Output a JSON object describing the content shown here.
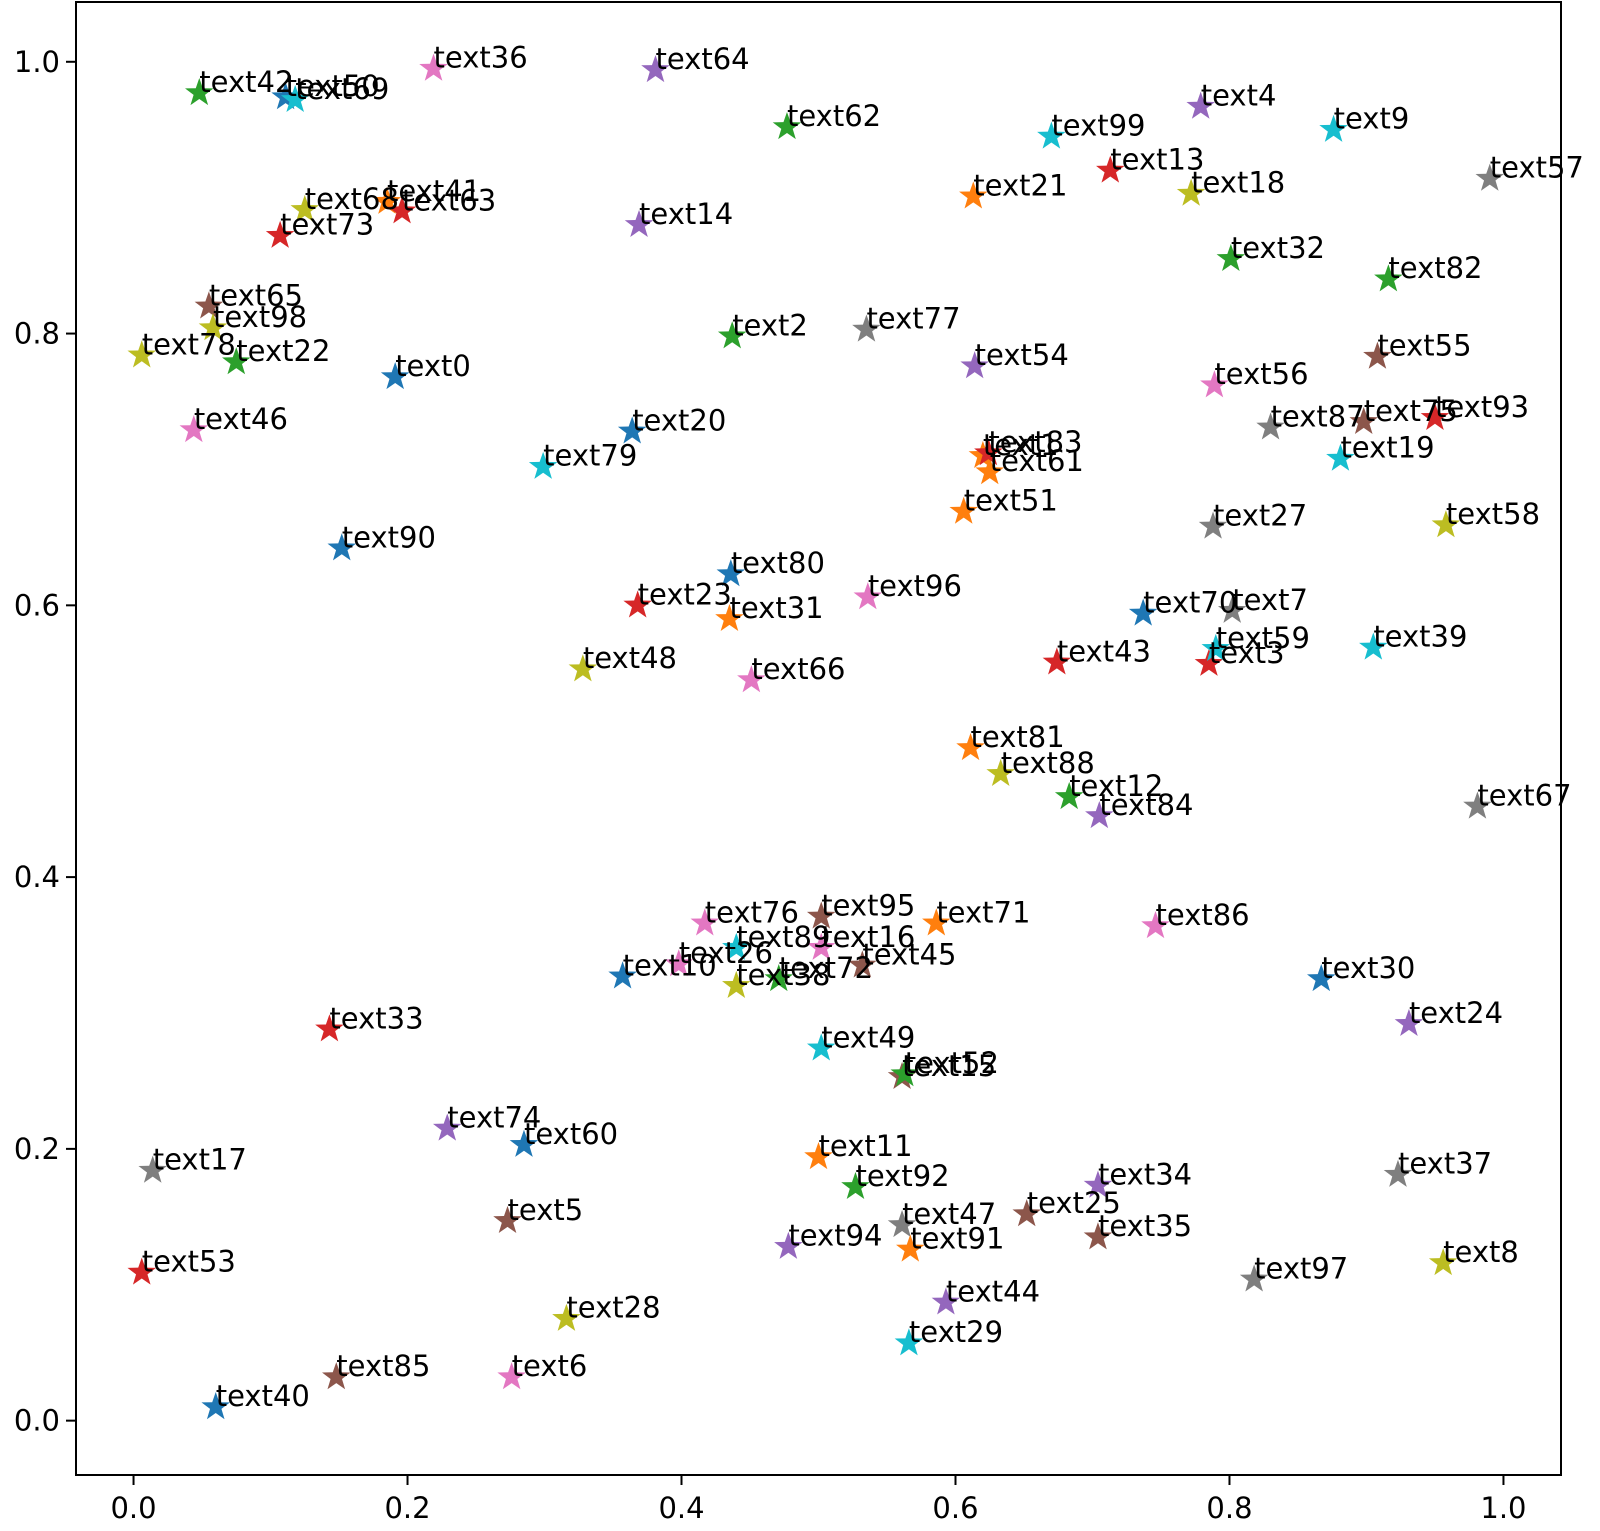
{
  "chart_data": {
    "type": "scatter",
    "title": "",
    "xlabel": "",
    "ylabel": "",
    "xlim": [
      -0.042,
      1.042
    ],
    "ylim": [
      -0.04,
      1.044
    ],
    "grid": false,
    "marker": "star",
    "x_ticks": [
      {
        "value": 0.0,
        "label": "0.0"
      },
      {
        "value": 0.2,
        "label": "0.2"
      },
      {
        "value": 0.4,
        "label": "0.4"
      },
      {
        "value": 0.6,
        "label": "0.6"
      },
      {
        "value": 0.8,
        "label": "0.8"
      },
      {
        "value": 1.0,
        "label": "1.0"
      }
    ],
    "y_ticks": [
      {
        "value": 0.0,
        "label": "0.0"
      },
      {
        "value": 0.2,
        "label": "0.2"
      },
      {
        "value": 0.4,
        "label": "0.4"
      },
      {
        "value": 0.6,
        "label": "0.6"
      },
      {
        "value": 0.8,
        "label": "0.8"
      },
      {
        "value": 1.0,
        "label": "1.0"
      }
    ],
    "points": [
      {
        "label": "text0",
        "x": 0.191,
        "y": 0.768,
        "color": "#1f77b4"
      },
      {
        "label": "text1",
        "x": 0.62,
        "y": 0.71,
        "color": "#ff7f0e"
      },
      {
        "label": "text2",
        "x": 0.437,
        "y": 0.798,
        "color": "#2ca02c"
      },
      {
        "label": "text3",
        "x": 0.785,
        "y": 0.557,
        "color": "#d62728"
      },
      {
        "label": "text4",
        "x": 0.779,
        "y": 0.967,
        "color": "#9467bd"
      },
      {
        "label": "text5",
        "x": 0.273,
        "y": 0.147,
        "color": "#8c564b"
      },
      {
        "label": "text6",
        "x": 0.276,
        "y": 0.032,
        "color": "#e377c2"
      },
      {
        "label": "text7",
        "x": 0.802,
        "y": 0.596,
        "color": "#7f7f7f"
      },
      {
        "label": "text8",
        "x": 0.956,
        "y": 0.116,
        "color": "#bcbd22"
      },
      {
        "label": "text9",
        "x": 0.876,
        "y": 0.95,
        "color": "#17becf"
      },
      {
        "label": "text10",
        "x": 0.357,
        "y": 0.327,
        "color": "#1f77b4"
      },
      {
        "label": "text11",
        "x": 0.5,
        "y": 0.194,
        "color": "#ff7f0e"
      },
      {
        "label": "text12",
        "x": 0.683,
        "y": 0.459,
        "color": "#2ca02c"
      },
      {
        "label": "text13",
        "x": 0.713,
        "y": 0.92,
        "color": "#d62728"
      },
      {
        "label": "text14",
        "x": 0.369,
        "y": 0.88,
        "color": "#9467bd"
      },
      {
        "label": "text15",
        "x": 0.561,
        "y": 0.253,
        "color": "#8c564b"
      },
      {
        "label": "text16",
        "x": 0.502,
        "y": 0.348,
        "color": "#e377c2"
      },
      {
        "label": "text17",
        "x": 0.014,
        "y": 0.184,
        "color": "#7f7f7f"
      },
      {
        "label": "text18",
        "x": 0.772,
        "y": 0.903,
        "color": "#bcbd22"
      },
      {
        "label": "text19",
        "x": 0.881,
        "y": 0.708,
        "color": "#17becf"
      },
      {
        "label": "text20",
        "x": 0.364,
        "y": 0.728,
        "color": "#1f77b4"
      },
      {
        "label": "text21",
        "x": 0.613,
        "y": 0.901,
        "color": "#ff7f0e"
      },
      {
        "label": "text22",
        "x": 0.075,
        "y": 0.779,
        "color": "#2ca02c"
      },
      {
        "label": "text23",
        "x": 0.368,
        "y": 0.6,
        "color": "#d62728"
      },
      {
        "label": "text24",
        "x": 0.931,
        "y": 0.292,
        "color": "#9467bd"
      },
      {
        "label": "text25",
        "x": 0.652,
        "y": 0.152,
        "color": "#8c564b"
      },
      {
        "label": "text26",
        "x": 0.398,
        "y": 0.336,
        "color": "#e377c2"
      },
      {
        "label": "text27",
        "x": 0.788,
        "y": 0.658,
        "color": "#7f7f7f"
      },
      {
        "label": "text28",
        "x": 0.316,
        "y": 0.075,
        "color": "#bcbd22"
      },
      {
        "label": "text29",
        "x": 0.566,
        "y": 0.057,
        "color": "#17becf"
      },
      {
        "label": "text30",
        "x": 0.867,
        "y": 0.325,
        "color": "#1f77b4"
      },
      {
        "label": "text31",
        "x": 0.435,
        "y": 0.59,
        "color": "#ff7f0e"
      },
      {
        "label": "text32",
        "x": 0.801,
        "y": 0.855,
        "color": "#2ca02c"
      },
      {
        "label": "text33",
        "x": 0.143,
        "y": 0.288,
        "color": "#d62728"
      },
      {
        "label": "text34",
        "x": 0.704,
        "y": 0.173,
        "color": "#9467bd"
      },
      {
        "label": "text35",
        "x": 0.704,
        "y": 0.135,
        "color": "#8c564b"
      },
      {
        "label": "text36",
        "x": 0.219,
        "y": 0.995,
        "color": "#e377c2"
      },
      {
        "label": "text37",
        "x": 0.923,
        "y": 0.181,
        "color": "#7f7f7f"
      },
      {
        "label": "text38",
        "x": 0.44,
        "y": 0.32,
        "color": "#bcbd22"
      },
      {
        "label": "text39",
        "x": 0.905,
        "y": 0.569,
        "color": "#17becf"
      },
      {
        "label": "text40",
        "x": 0.06,
        "y": 0.01,
        "color": "#1f77b4"
      },
      {
        "label": "text41",
        "x": 0.185,
        "y": 0.897,
        "color": "#ff7f0e"
      },
      {
        "label": "text42",
        "x": 0.048,
        "y": 0.977,
        "color": "#2ca02c"
      },
      {
        "label": "text43",
        "x": 0.674,
        "y": 0.558,
        "color": "#d62728"
      },
      {
        "label": "text44",
        "x": 0.593,
        "y": 0.087,
        "color": "#9467bd"
      },
      {
        "label": "text45",
        "x": 0.532,
        "y": 0.335,
        "color": "#8c564b"
      },
      {
        "label": "text46",
        "x": 0.044,
        "y": 0.729,
        "color": "#e377c2"
      },
      {
        "label": "text47",
        "x": 0.561,
        "y": 0.144,
        "color": "#7f7f7f"
      },
      {
        "label": "text48",
        "x": 0.328,
        "y": 0.553,
        "color": "#bcbd22"
      },
      {
        "label": "text49",
        "x": 0.502,
        "y": 0.274,
        "color": "#17becf"
      },
      {
        "label": "text50",
        "x": 0.111,
        "y": 0.974,
        "color": "#1f77b4"
      },
      {
        "label": "text51",
        "x": 0.606,
        "y": 0.669,
        "color": "#ff7f0e"
      },
      {
        "label": "text52",
        "x": 0.563,
        "y": 0.255,
        "color": "#2ca02c"
      },
      {
        "label": "text53",
        "x": 0.006,
        "y": 0.109,
        "color": "#d62728"
      },
      {
        "label": "text54",
        "x": 0.614,
        "y": 0.776,
        "color": "#9467bd"
      },
      {
        "label": "text55",
        "x": 0.908,
        "y": 0.783,
        "color": "#8c564b"
      },
      {
        "label": "text56",
        "x": 0.789,
        "y": 0.762,
        "color": "#e377c2"
      },
      {
        "label": "text57",
        "x": 0.99,
        "y": 0.914,
        "color": "#7f7f7f"
      },
      {
        "label": "text58",
        "x": 0.958,
        "y": 0.659,
        "color": "#bcbd22"
      },
      {
        "label": "text59",
        "x": 0.79,
        "y": 0.568,
        "color": "#17becf"
      },
      {
        "label": "text60",
        "x": 0.285,
        "y": 0.203,
        "color": "#1f77b4"
      },
      {
        "label": "text61",
        "x": 0.625,
        "y": 0.698,
        "color": "#ff7f0e"
      },
      {
        "label": "text62",
        "x": 0.477,
        "y": 0.952,
        "color": "#2ca02c"
      },
      {
        "label": "text63",
        "x": 0.196,
        "y": 0.89,
        "color": "#d62728"
      },
      {
        "label": "text64",
        "x": 0.381,
        "y": 0.994,
        "color": "#9467bd"
      },
      {
        "label": "text65",
        "x": 0.055,
        "y": 0.82,
        "color": "#8c564b"
      },
      {
        "label": "text66",
        "x": 0.451,
        "y": 0.545,
        "color": "#e377c2"
      },
      {
        "label": "text67",
        "x": 0.981,
        "y": 0.452,
        "color": "#7f7f7f"
      },
      {
        "label": "text68",
        "x": 0.125,
        "y": 0.891,
        "color": "#bcbd22"
      },
      {
        "label": "text69",
        "x": 0.118,
        "y": 0.972,
        "color": "#17becf"
      },
      {
        "label": "text70",
        "x": 0.737,
        "y": 0.594,
        "color": "#1f77b4"
      },
      {
        "label": "text71",
        "x": 0.586,
        "y": 0.366,
        "color": "#ff7f0e"
      },
      {
        "label": "text72",
        "x": 0.471,
        "y": 0.325,
        "color": "#2ca02c"
      },
      {
        "label": "text73",
        "x": 0.107,
        "y": 0.872,
        "color": "#d62728"
      },
      {
        "label": "text74",
        "x": 0.229,
        "y": 0.215,
        "color": "#9467bd"
      },
      {
        "label": "text75",
        "x": 0.898,
        "y": 0.735,
        "color": "#8c564b"
      },
      {
        "label": "text76",
        "x": 0.417,
        "y": 0.366,
        "color": "#e377c2"
      },
      {
        "label": "text77",
        "x": 0.535,
        "y": 0.803,
        "color": "#7f7f7f"
      },
      {
        "label": "text78",
        "x": 0.006,
        "y": 0.784,
        "color": "#bcbd22"
      },
      {
        "label": "text79",
        "x": 0.299,
        "y": 0.702,
        "color": "#17becf"
      },
      {
        "label": "text80",
        "x": 0.436,
        "y": 0.623,
        "color": "#1f77b4"
      },
      {
        "label": "text81",
        "x": 0.611,
        "y": 0.495,
        "color": "#ff7f0e"
      },
      {
        "label": "text82",
        "x": 0.916,
        "y": 0.84,
        "color": "#2ca02c"
      },
      {
        "label": "text83",
        "x": 0.624,
        "y": 0.712,
        "color": "#d62728"
      },
      {
        "label": "text84",
        "x": 0.705,
        "y": 0.445,
        "color": "#9467bd"
      },
      {
        "label": "text85",
        "x": 0.148,
        "y": 0.032,
        "color": "#8c564b"
      },
      {
        "label": "text86",
        "x": 0.746,
        "y": 0.364,
        "color": "#e377c2"
      },
      {
        "label": "text87",
        "x": 0.83,
        "y": 0.731,
        "color": "#7f7f7f"
      },
      {
        "label": "text88",
        "x": 0.633,
        "y": 0.476,
        "color": "#bcbd22"
      },
      {
        "label": "text89",
        "x": 0.44,
        "y": 0.348,
        "color": "#17becf"
      },
      {
        "label": "text90",
        "x": 0.152,
        "y": 0.642,
        "color": "#1f77b4"
      },
      {
        "label": "text91",
        "x": 0.567,
        "y": 0.126,
        "color": "#ff7f0e"
      },
      {
        "label": "text92",
        "x": 0.527,
        "y": 0.172,
        "color": "#2ca02c"
      },
      {
        "label": "text93",
        "x": 0.95,
        "y": 0.738,
        "color": "#d62728"
      },
      {
        "label": "text94",
        "x": 0.478,
        "y": 0.128,
        "color": "#9467bd"
      },
      {
        "label": "text95",
        "x": 0.502,
        "y": 0.371,
        "color": "#8c564b"
      },
      {
        "label": "text96",
        "x": 0.536,
        "y": 0.606,
        "color": "#e377c2"
      },
      {
        "label": "text97",
        "x": 0.818,
        "y": 0.104,
        "color": "#7f7f7f"
      },
      {
        "label": "text98",
        "x": 0.058,
        "y": 0.804,
        "color": "#bcbd22"
      },
      {
        "label": "text99",
        "x": 0.67,
        "y": 0.945,
        "color": "#17becf"
      }
    ]
  }
}
